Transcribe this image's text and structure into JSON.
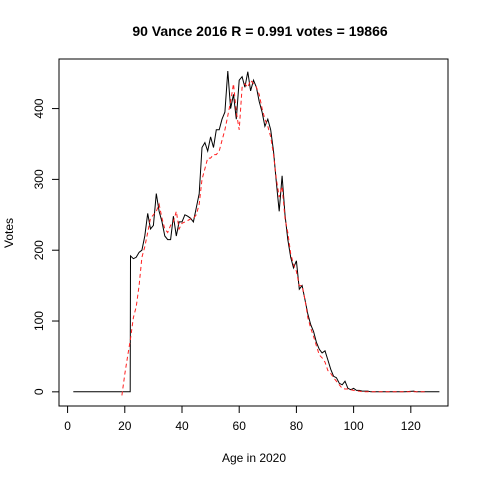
{
  "chart_data": {
    "type": "line",
    "title": "90 Vance 2016 R = 0.991 votes = 19866",
    "xlabel": "Age in 2020",
    "ylabel": "Votes",
    "xlim": [
      -3,
      133
    ],
    "ylim": [
      -20,
      470
    ],
    "xticks": [
      0,
      20,
      40,
      60,
      80,
      100,
      120
    ],
    "yticks": [
      0,
      100,
      200,
      300,
      400
    ],
    "xtick_labels": [
      "0",
      "20",
      "40",
      "60",
      "80",
      "100",
      "120"
    ],
    "ytick_labels": [
      "0",
      "100",
      "200",
      "300",
      "400"
    ],
    "grid": false,
    "legend": "none",
    "series": [
      {
        "style": "solid",
        "color": "#000000",
        "x": [
          2,
          10,
          18,
          21.9,
          22,
          23,
          24,
          25,
          26,
          27,
          28,
          29,
          30,
          31,
          32,
          33,
          34,
          35,
          36,
          37,
          38,
          39,
          40,
          41,
          42,
          43,
          44,
          45,
          46,
          47,
          48,
          49,
          50,
          51,
          52,
          53,
          54,
          55,
          56,
          57,
          58,
          59,
          60,
          61,
          62,
          63,
          64,
          65,
          66,
          67,
          68,
          69,
          70,
          71,
          72,
          73,
          74,
          75,
          76,
          77,
          78,
          79,
          80,
          81,
          82,
          83,
          84,
          85,
          86,
          87,
          88,
          89,
          90,
          91,
          92,
          93,
          94,
          95,
          96,
          97,
          98,
          99,
          100,
          101,
          102,
          103,
          104,
          105,
          106,
          107,
          108,
          110,
          112,
          115,
          118,
          121,
          122,
          125,
          130
        ],
        "y": [
          0,
          0,
          0,
          0,
          192,
          188,
          190,
          197,
          200,
          220,
          252,
          230,
          235,
          280,
          255,
          240,
          220,
          215,
          215,
          248,
          220,
          240,
          240,
          250,
          248,
          245,
          240,
          260,
          280,
          345,
          352,
          340,
          360,
          345,
          370,
          370,
          385,
          395,
          453,
          400,
          420,
          385,
          440,
          445,
          430,
          452,
          425,
          440,
          430,
          410,
          395,
          375,
          385,
          370,
          340,
          295,
          255,
          305,
          250,
          215,
          190,
          175,
          185,
          145,
          150,
          130,
          110,
          95,
          85,
          70,
          60,
          55,
          58,
          45,
          32,
          22,
          20,
          12,
          10,
          15,
          5,
          3,
          5,
          2,
          2,
          1,
          1,
          1,
          0,
          0,
          0,
          0,
          0,
          0,
          0,
          1,
          0,
          0,
          0
        ]
      },
      {
        "style": "dashed",
        "color": "#ff2020",
        "x": [
          19,
          20,
          21,
          22,
          23,
          24,
          25,
          26,
          27,
          28,
          29,
          30,
          31,
          32,
          33,
          34,
          35,
          36,
          37,
          38,
          39,
          40,
          41,
          42,
          43,
          44,
          45,
          46,
          47,
          48,
          49,
          50,
          51,
          52,
          53,
          54,
          55,
          56,
          57,
          58,
          59,
          60,
          61,
          62,
          63,
          64,
          65,
          66,
          67,
          68,
          69,
          70,
          71,
          72,
          73,
          74,
          75,
          76,
          77,
          78,
          79,
          80,
          81,
          82,
          83,
          84,
          85,
          86,
          87,
          88,
          89,
          90,
          91,
          92,
          93,
          94,
          95,
          96,
          97,
          98,
          99,
          100,
          101,
          102,
          103,
          104,
          105,
          108,
          112,
          118,
          125
        ],
        "y": [
          -5,
          25,
          50,
          75,
          105,
          120,
          150,
          190,
          205,
          225,
          245,
          250,
          255,
          265,
          245,
          230,
          225,
          235,
          240,
          255,
          230,
          238,
          240,
          242,
          244,
          245,
          250,
          265,
          300,
          315,
          330,
          330,
          335,
          335,
          340,
          355,
          370,
          390,
          410,
          435,
          395,
          370,
          430,
          435,
          430,
          440,
          435,
          430,
          420,
          400,
          385,
          375,
          360,
          335,
          300,
          275,
          290,
          245,
          225,
          195,
          180,
          170,
          150,
          150,
          130,
          105,
          90,
          78,
          65,
          52,
          48,
          42,
          30,
          26,
          20,
          15,
          10,
          5,
          4,
          4,
          3,
          2,
          1,
          1,
          0,
          0,
          0,
          0,
          0,
          0,
          0
        ]
      }
    ]
  }
}
